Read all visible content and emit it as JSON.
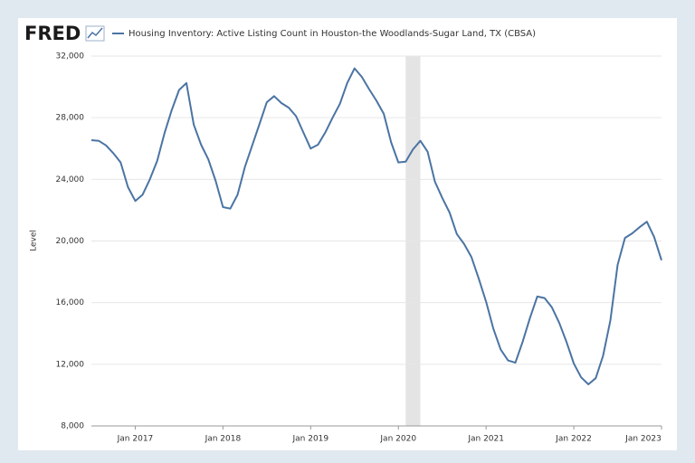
{
  "chart_data": {
    "type": "line",
    "logo": "FRED",
    "title": "Housing Inventory: Active Listing Count in Houston-the Woodlands-Sugar Land, TX (CBSA)",
    "ylabel": "Level",
    "x": [
      "2016-07",
      "2016-08",
      "2016-09",
      "2016-10",
      "2016-11",
      "2016-12",
      "2017-01",
      "2017-02",
      "2017-03",
      "2017-04",
      "2017-05",
      "2017-06",
      "2017-07",
      "2017-08",
      "2017-09",
      "2017-10",
      "2017-11",
      "2017-12",
      "2018-01",
      "2018-02",
      "2018-03",
      "2018-04",
      "2018-05",
      "2018-06",
      "2018-07",
      "2018-08",
      "2018-09",
      "2018-10",
      "2018-11",
      "2018-12",
      "2019-01",
      "2019-02",
      "2019-03",
      "2019-04",
      "2019-05",
      "2019-06",
      "2019-07",
      "2019-08",
      "2019-09",
      "2019-10",
      "2019-11",
      "2019-12",
      "2020-01",
      "2020-02",
      "2020-03",
      "2020-04",
      "2020-05",
      "2020-06",
      "2020-07",
      "2020-08",
      "2020-09",
      "2020-10",
      "2020-11",
      "2020-12",
      "2021-01",
      "2021-02",
      "2021-03",
      "2021-04",
      "2021-05",
      "2021-06",
      "2021-07",
      "2021-08",
      "2021-09",
      "2021-10",
      "2021-11",
      "2021-12",
      "2022-01",
      "2022-02",
      "2022-03",
      "2022-04",
      "2022-05",
      "2022-06",
      "2022-07",
      "2022-08",
      "2022-09",
      "2022-10",
      "2022-11",
      "2022-12",
      "2023-01"
    ],
    "series": [
      {
        "name": "Housing Inventory: Active Listing Count in Houston-the Woodlands-Sugar Land, TX (CBSA)",
        "color": "#4b74a3",
        "values": [
          26540,
          26500,
          26200,
          25700,
          25100,
          23500,
          22600,
          23000,
          24000,
          25200,
          27000,
          28500,
          29800,
          30250,
          27550,
          26250,
          25300,
          23900,
          22200,
          22100,
          23000,
          24800,
          26200,
          27600,
          29000,
          29400,
          28950,
          28650,
          28100,
          27050,
          26000,
          26250,
          27050,
          28000,
          28900,
          30250,
          31200,
          30650,
          29850,
          29100,
          28250,
          26400,
          25100,
          25150,
          25950,
          26500,
          25800,
          23850,
          22800,
          21850,
          20450,
          19800,
          18950,
          17550,
          16050,
          14300,
          12950,
          12250,
          12100,
          13450,
          15000,
          16400,
          16300,
          15700,
          14700,
          13450,
          12050,
          11150,
          10700,
          11100,
          12550,
          14850,
          18450,
          20200,
          20500,
          20900,
          21250,
          20250,
          18750
        ]
      }
    ],
    "xlim": [
      "2016-07",
      "2023-01"
    ],
    "xticks": [
      {
        "value": "2017-01",
        "label": "Jan 2017"
      },
      {
        "value": "2018-01",
        "label": "Jan 2018"
      },
      {
        "value": "2019-01",
        "label": "Jan 2019"
      },
      {
        "value": "2020-01",
        "label": "Jan 2020"
      },
      {
        "value": "2021-01",
        "label": "Jan 2021"
      },
      {
        "value": "2022-01",
        "label": "Jan 2022"
      },
      {
        "value": "2023-01",
        "label": "Jan 2023"
      }
    ],
    "ylim": [
      8000,
      32000
    ],
    "yticks": [
      {
        "value": 8000,
        "label": "8,000"
      },
      {
        "value": 12000,
        "label": "12,000"
      },
      {
        "value": 16000,
        "label": "16,000"
      },
      {
        "value": 20000,
        "label": "20,000"
      },
      {
        "value": 24000,
        "label": "24,000"
      },
      {
        "value": 28000,
        "label": "28,000"
      },
      {
        "value": 32000,
        "label": "32,000"
      }
    ],
    "grid": true,
    "shaded_periods": [
      {
        "start": "2020-02",
        "end": "2020-04"
      }
    ],
    "shade_color": "#e4e4e4"
  }
}
